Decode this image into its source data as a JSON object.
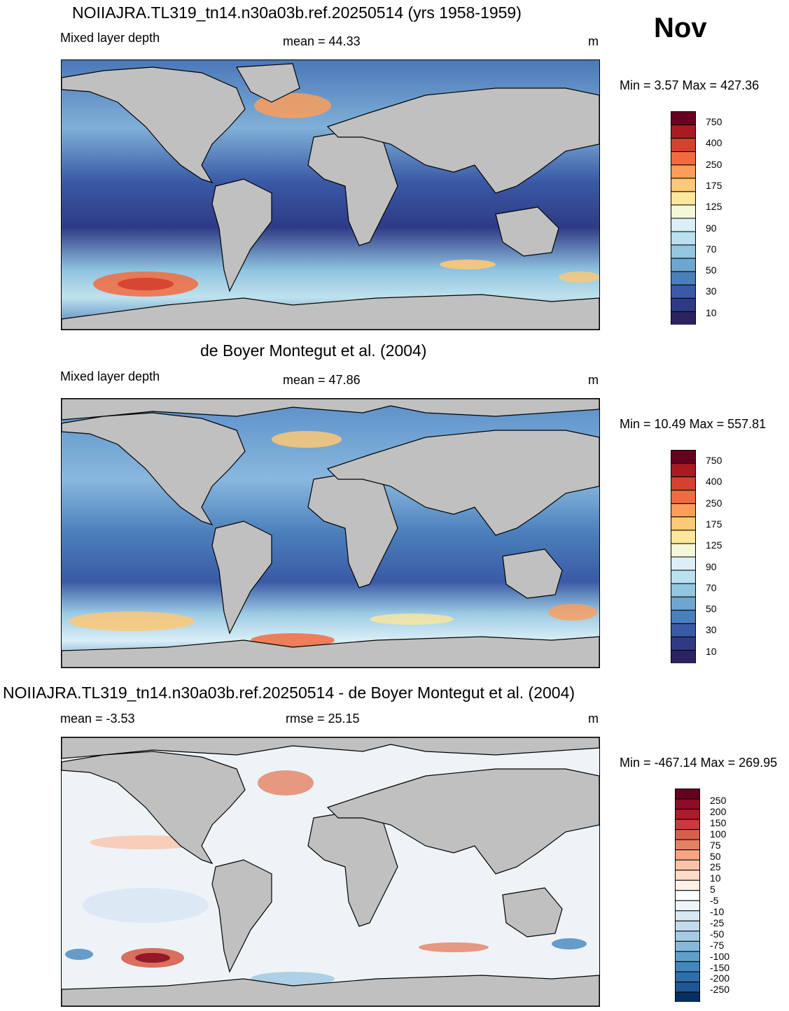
{
  "month": "Nov",
  "panels": [
    {
      "title": "NOIIAJRA.TL319_tn14.n30a03b.ref.20250514 (yrs 1958-1959)",
      "left_label": "Mixed layer depth",
      "center_label": "mean =  44.33",
      "unit": "m",
      "minmax": "Min =   3.57 Max = 427.36",
      "colorbar": {
        "labels": [
          "750",
          "400",
          "250",
          "175",
          "125",
          "90",
          "70",
          "50",
          "30",
          "10"
        ],
        "colors": [
          "#67001f",
          "#a91a23",
          "#d6402f",
          "#f26b40",
          "#fc9d5b",
          "#fdc877",
          "#fde79b",
          "#f4f8d8",
          "#dceff6",
          "#bbe0ee",
          "#93c7e0",
          "#6ea6cf",
          "#4b7fbb",
          "#3a5aa6",
          "#2f3a86",
          "#2a2360"
        ]
      }
    },
    {
      "title": "de Boyer Montegut et al. (2004)",
      "left_label": "Mixed layer depth",
      "center_label": "mean =  47.86",
      "unit": "m",
      "minmax": "Min =  10.49 Max = 557.81",
      "colorbar": {
        "labels": [
          "750",
          "400",
          "250",
          "175",
          "125",
          "90",
          "70",
          "50",
          "30",
          "10"
        ],
        "colors": [
          "#67001f",
          "#a91a23",
          "#d6402f",
          "#f26b40",
          "#fc9d5b",
          "#fdc877",
          "#fde79b",
          "#f4f8d8",
          "#dceff6",
          "#bbe0ee",
          "#93c7e0",
          "#6ea6cf",
          "#4b7fbb",
          "#3a5aa6",
          "#2f3a86",
          "#2a2360"
        ]
      }
    },
    {
      "title": "NOIIAJRA.TL319_tn14.n30a03b.ref.20250514 - de Boyer Montegut et al. (2004)",
      "left_label": "mean =  -3.53",
      "center_label": "rmse =  25.15",
      "unit": "m",
      "minmax": "Min = -467.14 Max = 269.95",
      "colorbar": {
        "labels": [
          "250",
          "200",
          "150",
          "100",
          "75",
          "50",
          "25",
          "10",
          "5",
          "-5",
          "-10",
          "-25",
          "-50",
          "-75",
          "-100",
          "-150",
          "-200",
          "-250"
        ],
        "colors": [
          "#67001f",
          "#8c0d25",
          "#b2182b",
          "#c83a3e",
          "#d6604d",
          "#e48163",
          "#f4a582",
          "#f8c4a9",
          "#fddbc7",
          "#fdf0e8",
          "#ffffff",
          "#eef4f9",
          "#d9e8f3",
          "#c2dcec",
          "#a6cce3",
          "#87b9d9",
          "#5f9fcb",
          "#4286bd",
          "#2f6ea9",
          "#1f5693",
          "#053061"
        ]
      }
    }
  ],
  "colors": {
    "land": "#c0c0c0",
    "ocean_model": "#6a95c8",
    "ocean_obs": "#5b8fc8",
    "ocean_diff": "#eef3f8"
  }
}
